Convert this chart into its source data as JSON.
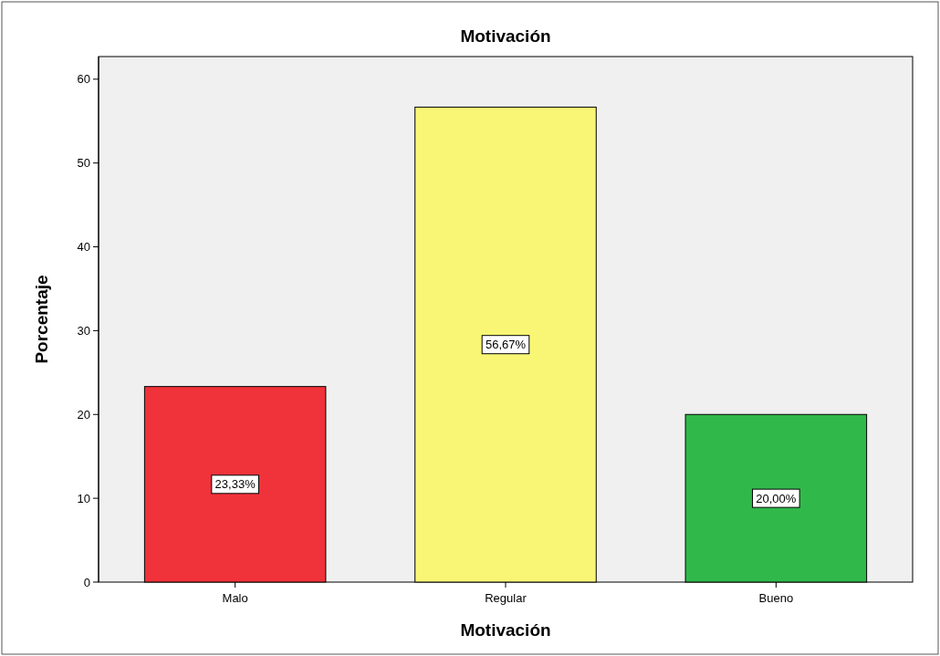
{
  "chart_data": {
    "type": "bar",
    "title": "Motivación",
    "xlabel": "Motivación",
    "ylabel": "Porcentaje",
    "categories": [
      "Malo",
      "Regular",
      "Bueno"
    ],
    "values": [
      23.33,
      56.67,
      20.0
    ],
    "colors": [
      "#f0323a",
      "#f9f675",
      "#30b94a"
    ],
    "value_labels": [
      "23,33%",
      "56,67%",
      "20,00%"
    ],
    "ylim": [
      0,
      62.7
    ],
    "yticks": [
      0,
      10,
      20,
      30,
      40,
      50,
      60
    ],
    "grid": false
  }
}
